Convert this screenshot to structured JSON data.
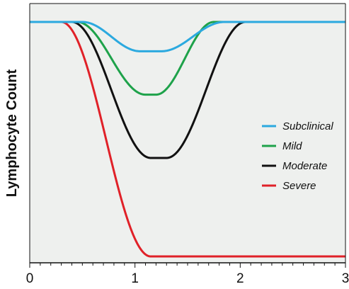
{
  "chart_data": {
    "type": "line",
    "title": "",
    "xlabel": "",
    "ylabel": "Lymphocyte Count",
    "xlim": [
      0,
      3
    ],
    "ylim": [
      0,
      1
    ],
    "x_ticks": [
      "0",
      "1",
      "2",
      "3"
    ],
    "y_ticks": [],
    "grid": false,
    "legend_position": "right",
    "background": "#eef0ee",
    "series": [
      {
        "name": "Subclinical",
        "color": "#2ba9df",
        "baseline": 1.0,
        "min": 0.875,
        "t0": 0.5,
        "t1": 1.05,
        "t2": 1.25,
        "t3": 1.85
      },
      {
        "name": "Mild",
        "color": "#1ea24a",
        "baseline": 1.0,
        "min": 0.69,
        "t0": 0.45,
        "t1": 1.1,
        "t2": 1.2,
        "t3": 1.75
      },
      {
        "name": "Moderate",
        "color": "#111111",
        "baseline": 1.0,
        "min": 0.42,
        "t0": 0.4,
        "t1": 1.15,
        "t2": 1.3,
        "t3": 2.05
      },
      {
        "name": "Severe",
        "color": "#e02128",
        "baseline": 1.0,
        "min": 0.0,
        "t0": 0.3,
        "t1": 1.15,
        "t2": 3.0,
        "t3": 3.0
      }
    ]
  }
}
